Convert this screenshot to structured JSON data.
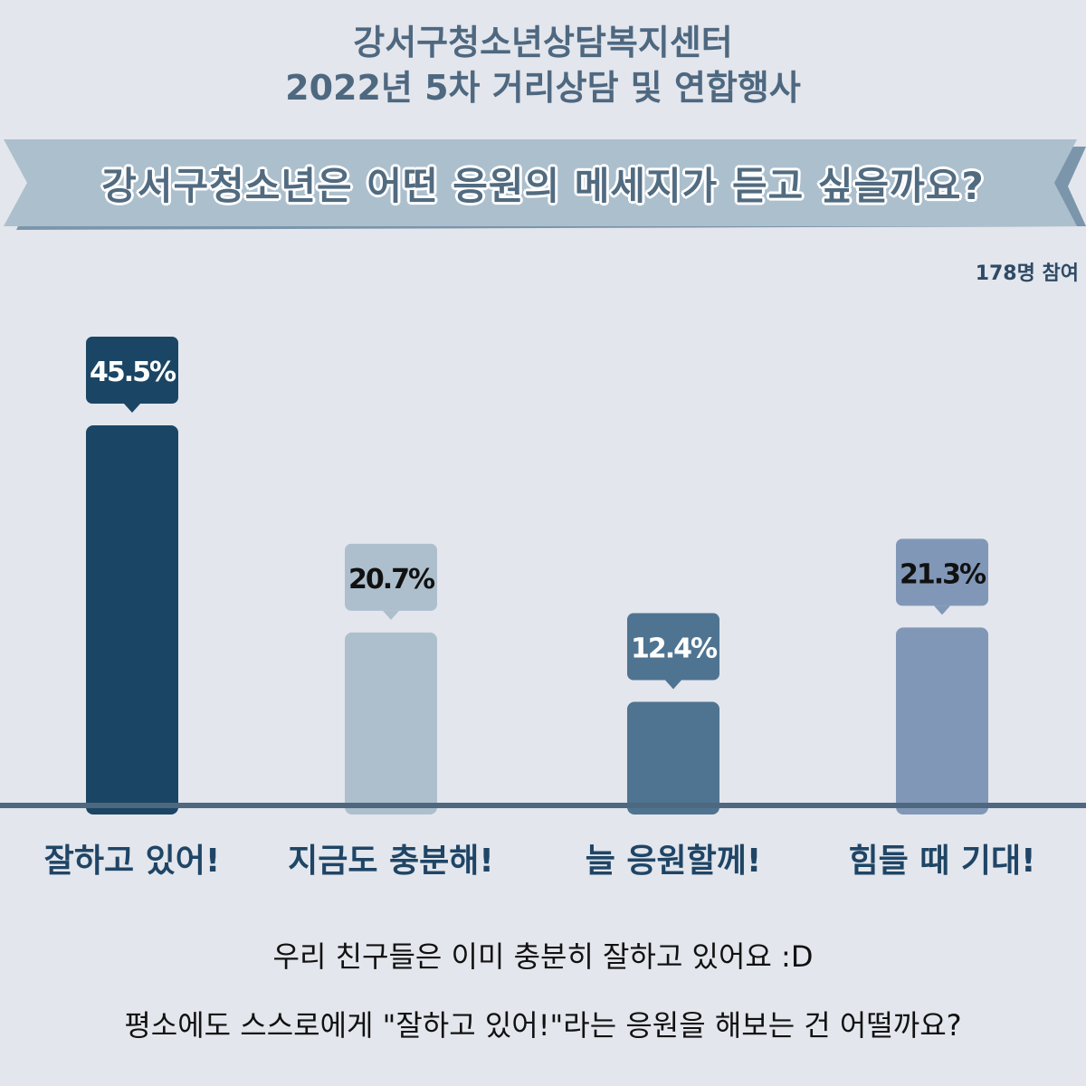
{
  "header": {
    "line1": "강서구청소년상담복지센터",
    "line2": "2022년 5차 거리상담 및 연합행사"
  },
  "banner": {
    "question": "강서구청소년은 어떤 응원의 메세지가 듣고 싶을까요?"
  },
  "participants": "178명 참여",
  "chart_data": {
    "type": "bar",
    "categories": [
      "잘하고 있어!",
      "지금도 충분해!",
      "늘 응원할께!",
      "힘들 때 기대!"
    ],
    "values": [
      45.5,
      20.7,
      12.4,
      21.3
    ],
    "value_labels": [
      "45.5%",
      "20.7%",
      "12.4%",
      "21.3%"
    ],
    "colors": [
      "#1b4565",
      "#adbfcd",
      "#4f7491",
      "#8197b7"
    ],
    "label_text_colors": [
      "#ffffff",
      "#111111",
      "#ffffff",
      "#111111"
    ],
    "ylim": [
      0,
      45.5
    ],
    "grid": false
  },
  "footer": {
    "line1": "우리 친구들은 이미 충분히 잘하고 있어요 :D",
    "line2": "평소에도 스스로에게 \"잘하고 있어!\"라는 응원을 해보는 건 어떨까요?"
  }
}
